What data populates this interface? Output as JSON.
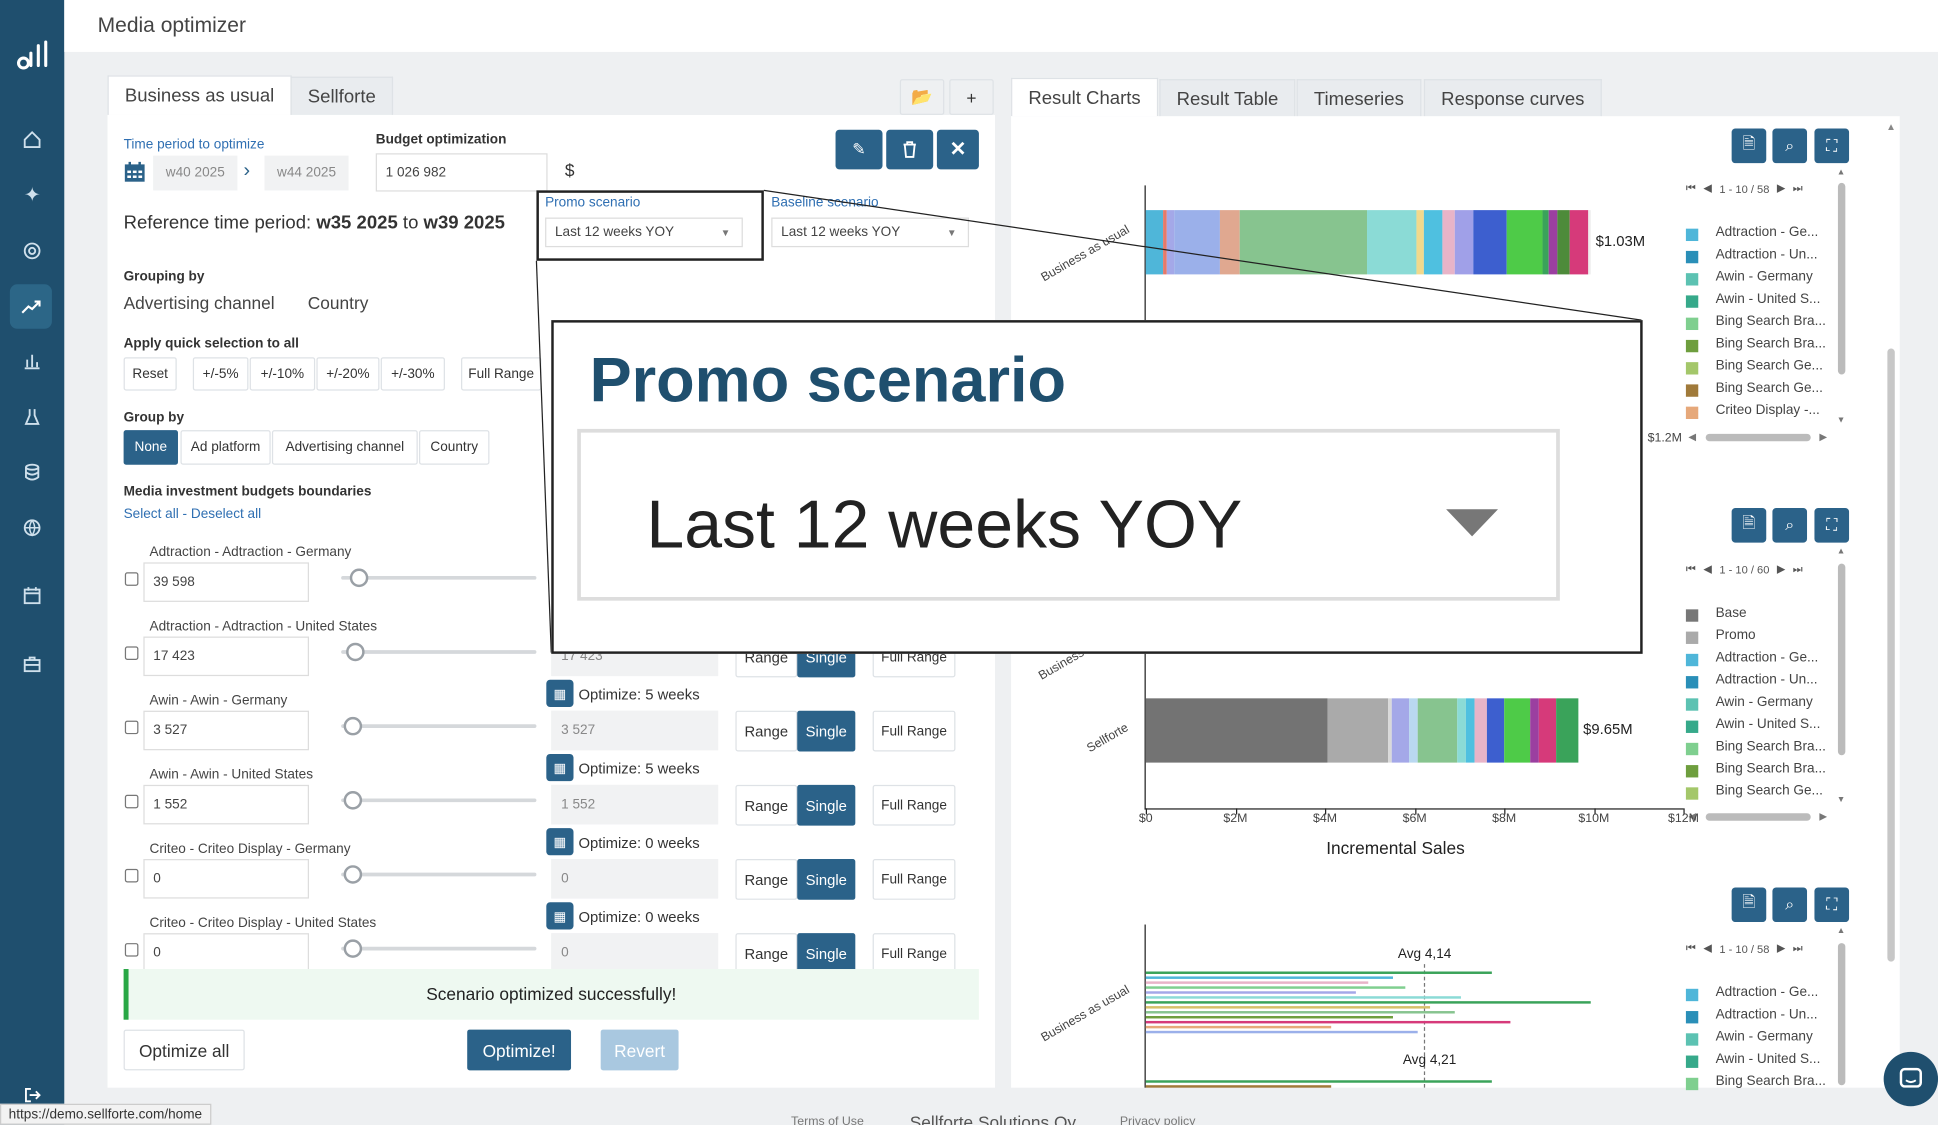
{
  "app": {
    "title": "Media optimizer"
  },
  "sidebar": {
    "items": [
      {
        "icon": "logo-icon"
      },
      {
        "icon": "home-icon"
      },
      {
        "icon": "sparkle-icon"
      },
      {
        "icon": "target-icon"
      },
      {
        "icon": "trend-icon",
        "active": true
      },
      {
        "icon": "bar-chart-icon"
      },
      {
        "icon": "flask-icon"
      },
      {
        "icon": "database-icon"
      },
      {
        "icon": "globe-icon"
      },
      {
        "icon": "calendar-icon"
      },
      {
        "icon": "briefcase-icon"
      },
      {
        "icon": "logout-icon"
      }
    ]
  },
  "left": {
    "tabs": [
      "Business as usual",
      "Sellforte"
    ],
    "folder_icon": "folder-icon",
    "add_label": "+",
    "time_period_label": "Time period to optimize",
    "week_from": "w40 2025",
    "week_to": "w44 2025",
    "budget_label": "Budget optimization",
    "budget_value": "1 026 982",
    "currency": "$",
    "promo_label": "Promo scenario",
    "promo_value": "Last 12 weeks YOY",
    "baseline_label": "Baseline scenario",
    "baseline_value": "Last 12 weeks YOY",
    "ref_prefix": "Reference time period:",
    "ref_from": "w35 2025",
    "ref_to_word": "to",
    "ref_to": "w39 2025",
    "grouping_label": "Grouping by",
    "grouping_values": [
      "Advertising channel",
      "Country"
    ],
    "quick_label": "Apply quick selection to all",
    "quick_buttons": [
      "Reset",
      "+/-5%",
      "+/-10%",
      "+/-20%",
      "+/-30%",
      "Full Range"
    ],
    "group_by_label": "Group by",
    "group_by_buttons": [
      "None",
      "Ad platform",
      "Advertising channel",
      "Country"
    ],
    "budgets_label": "Media investment budgets boundaries",
    "select_all": "Select all",
    "separator": "-",
    "deselect_all": "Deselect all",
    "rows": [
      {
        "name": "Adtraction - Adtraction - Germany",
        "value": "39 598",
        "opt": "",
        "opt_value": ""
      },
      {
        "name": "Adtraction - Adtraction - United States",
        "value": "17 423",
        "opt": "",
        "opt_value": "17 423"
      },
      {
        "name": "Awin - Awin - Germany",
        "value": "3 527",
        "opt": "Optimize: 5 weeks",
        "opt_value": "3 527"
      },
      {
        "name": "Awin - Awin - United States",
        "value": "1 552",
        "opt": "Optimize: 5 weeks",
        "opt_value": "1 552"
      },
      {
        "name": "Criteo - Criteo Display - Germany",
        "value": "0",
        "opt": "Optimize: 0 weeks",
        "opt_value": "0"
      },
      {
        "name": "Criteo - Criteo Display - United States",
        "value": "0",
        "opt": "Optimize: 0 weeks",
        "opt_value": "0"
      }
    ],
    "range_label": "Range",
    "single_label": "Single",
    "full_range_label": "Full Range",
    "success_message": "Scenario optimized successfully!",
    "optimize_all": "Optimize all",
    "optimize": "Optimize!",
    "revert": "Revert"
  },
  "right": {
    "tabs": [
      "Result Charts",
      "Result Table",
      "Timeseries",
      "Response curves"
    ],
    "chart1": {
      "category": "Business as usual",
      "total_label": "$1.03M",
      "axis_end_label": "$1.2M",
      "pager": "1 - 10 / 58",
      "legend": [
        "Adtraction - Ge...",
        "Adtraction - Un...",
        "Awin - Germany",
        "Awin - United S...",
        "Bing Search Bra...",
        "Bing Search Bra...",
        "Bing Search Ge...",
        "Bing Search Ge...",
        "Criteo Display -..."
      ]
    },
    "chart2": {
      "categories": [
        "Business as usual",
        "Sellforte"
      ],
      "total_label": "$9.65M",
      "x_ticks": [
        "$0",
        "$2M",
        "$4M",
        "$6M",
        "$8M",
        "$10M",
        "$12M"
      ],
      "xlabel": "Incremental Sales",
      "pager": "1 - 10 / 60",
      "legend": [
        "Base",
        "Promo",
        "Adtraction - Ge...",
        "Adtraction - Un...",
        "Awin - Germany",
        "Awin - United S...",
        "Bing Search Bra...",
        "Bing Search Bra...",
        "Bing Search Ge..."
      ]
    },
    "chart3": {
      "category": "Business as usual",
      "avg1": "Avg 4,14",
      "avg2": "Avg 4,21",
      "pager": "1 - 10 / 58",
      "legend": [
        "Adtraction - Ge...",
        "Adtraction - Un...",
        "Awin - Germany",
        "Awin - United S...",
        "Bing Search Bra..."
      ]
    }
  },
  "zoom_callout": {
    "label": "Promo scenario",
    "value": "Last 12 weeks YOY"
  },
  "footer": {
    "terms": "Terms of Use",
    "company": "Sellforte Solutions Oy",
    "privacy": "Privacy policy"
  },
  "status_url": "https://demo.sellforte.com/home",
  "colors": {
    "sidebar": "#1f4f6e",
    "accent": "#2b6289",
    "success_bg": "#eef9f1",
    "success_border": "#28a745"
  },
  "chart_data": [
    {
      "type": "bar",
      "categories": [
        "Business as usual",
        "Sellforte"
      ],
      "series": [
        {
          "values": [
            1.03,
            9.65
          ]
        }
      ],
      "x_ticks": [
        "$0",
        "$2M",
        "$4M",
        "$6M",
        "$8M",
        "$10M",
        "$12M"
      ],
      "xlabel": "Incremental Sales",
      "xlim": [
        0,
        12
      ]
    }
  ]
}
